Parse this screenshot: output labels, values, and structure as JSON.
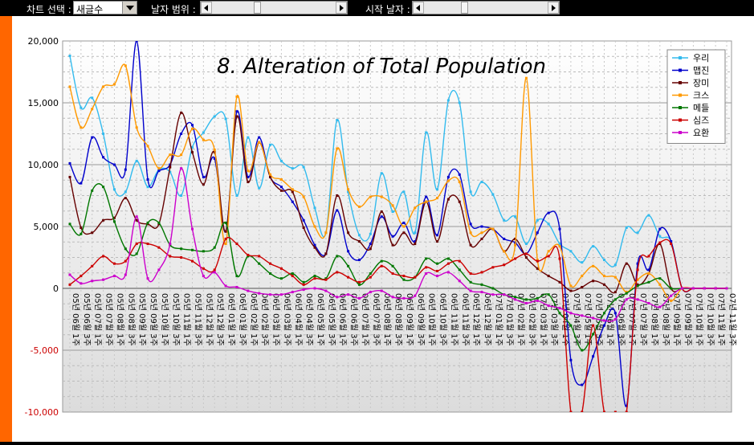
{
  "toolbar": {
    "chart_select_label": "차트 선택 :",
    "chart_select_value": "새글수",
    "date_range_label": "날자 범위 :",
    "start_date_label": "시작 날자 :"
  },
  "colors": {
    "accent_sidebar": "#ff6600",
    "plot_background": "#e6e6e6"
  },
  "chart_data": {
    "type": "line",
    "title": "8. Alteration of Total Population",
    "xlabel": "",
    "ylabel": "",
    "ylim": [
      -10000,
      20000
    ],
    "yticks": [
      -10000,
      -5000,
      0,
      5000,
      10000,
      15000,
      20000
    ],
    "ytick_labels": [
      "-10,000",
      "-5,000",
      "0",
      "5,000",
      "10,000",
      "15,000",
      "20,000"
    ],
    "grid": true,
    "legend_position": "top-right",
    "categories": [
      "05년 06월 1주",
      "05년 06월 3주",
      "05년 07월 1주",
      "05년 07월 3주",
      "05년 08월 1주",
      "05년 08월 3주",
      "05년 09월 1주",
      "05년 09월 3주",
      "05년 10월 1주",
      "05년 10월 3주",
      "05년 11월 1주",
      "05년 11월 3주",
      "05년 12월 1주",
      "05년 12월 3주",
      "06년 01월 1주",
      "06년 01월 3주",
      "06년 02월 1주",
      "06년 02월 3주",
      "06년 03월 1주",
      "06년 03월 3주",
      "06년 04월 1주",
      "06년 04월 3주",
      "06년 05월 1주",
      "06년 05월 3주",
      "06년 06월 1주",
      "06년 06월 3주",
      "06년 07월 1주",
      "06년 07월 3주",
      "06년 08월 1주",
      "06년 08월 3주",
      "06년 09월 1주",
      "06년 09월 3주",
      "06년 10월 1주",
      "06년 10월 3주",
      "06년 11월 1주",
      "06년 11월 3주",
      "06년 12월 1주",
      "06년 12월 3주",
      "07년 01월 1주",
      "07년 01월 3주",
      "07년 02월 1주",
      "07년 02월 3주",
      "07년 03월 1주",
      "07년 03월 3주",
      "07년 04월 1주",
      "07년 04월 3주",
      "07년 05월 1주",
      "07년 05월 3주",
      "07년 06월 1주",
      "07년 06월 3주",
      "07년 07월 1주",
      "07년 07월 3주",
      "07년 08월 1주",
      "07년 08월 3주",
      "07년 09월 1주",
      "07년 09월 3주",
      "07년 10월 1주",
      "07년 10월 3주",
      "07년 11월 1주",
      "07년 11월 3주"
    ],
    "series": [
      {
        "name": "우리",
        "color": "#33bbee",
        "values": [
          18800,
          14600,
          15400,
          12500,
          8000,
          7800,
          10300,
          8200,
          9600,
          9400,
          7500,
          11400,
          12600,
          13900,
          13700,
          7500,
          12200,
          8100,
          11600,
          10300,
          9700,
          9800,
          6500,
          4500,
          13600,
          7800,
          4300,
          4400,
          9300,
          6200,
          7800,
          4500,
          12600,
          8000,
          15200,
          15000,
          7800,
          8600,
          7600,
          5500,
          5800,
          3600,
          5500,
          5200,
          3600,
          3000,
          2100,
          3400,
          2300,
          1900,
          4900,
          4500,
          5900,
          4200,
          3800,
          0,
          0,
          0,
          0,
          0
        ]
      },
      {
        "name": "맵진",
        "color": "#0000cc",
        "values": [
          10100,
          8500,
          12200,
          10600,
          10000,
          9600,
          20000,
          8800,
          9500,
          10000,
          12500,
          13200,
          9000,
          10500,
          4600,
          14300,
          9000,
          12200,
          9000,
          8200,
          7000,
          5500,
          3500,
          2800,
          6300,
          3000,
          2300,
          3600,
          5800,
          4200,
          5300,
          3800,
          7400,
          4300,
          9000,
          9200,
          5200,
          5000,
          4800,
          4000,
          3700,
          2800,
          4500,
          6100,
          4800,
          -5800,
          -7800,
          -5500,
          -3000,
          -2000,
          -9500,
          2000,
          1500,
          4800,
          3800,
          0,
          0,
          0,
          0,
          0
        ]
      },
      {
        "name": "장미",
        "color": "#660000",
        "values": [
          9000,
          4900,
          4500,
          5500,
          5700,
          7300,
          5500,
          5200,
          5200,
          9800,
          14200,
          11000,
          8400,
          11000,
          4600,
          13900,
          8600,
          11800,
          9000,
          7900,
          7800,
          4900,
          3300,
          2800,
          7500,
          4500,
          3800,
          3200,
          6200,
          3500,
          4500,
          3600,
          7000,
          3800,
          7200,
          7000,
          3500,
          4000,
          4800,
          3000,
          4000,
          2500,
          1600,
          1000,
          500,
          -200,
          100,
          600,
          300,
          -300,
          2000,
          300,
          1200,
          3600,
          0,
          0,
          0,
          0,
          0,
          0
        ]
      },
      {
        "name": "크스",
        "color": "#ff9900",
        "values": [
          16300,
          13000,
          14500,
          16300,
          16500,
          18000,
          13000,
          11500,
          9700,
          10800,
          10800,
          12900,
          12000,
          11200,
          3600,
          15500,
          9500,
          11800,
          9200,
          8800,
          8000,
          7400,
          5000,
          4500,
          11300,
          8000,
          6600,
          7400,
          7400,
          6700,
          5000,
          6500,
          7000,
          7300,
          8700,
          8600,
          4500,
          4500,
          4800,
          3000,
          3500,
          17000,
          2300,
          3000,
          3400,
          200,
          1000,
          1800,
          1000,
          900,
          -300,
          700,
          1200,
          300,
          -1000,
          0,
          0,
          0,
          0,
          0
        ]
      },
      {
        "name": "메들",
        "color": "#007700",
        "values": [
          5200,
          4400,
          7900,
          8200,
          5400,
          3200,
          2800,
          5300,
          5300,
          3500,
          3200,
          3100,
          3000,
          3300,
          5300,
          1000,
          2600,
          2000,
          1200,
          800,
          1200,
          500,
          1000,
          800,
          2600,
          1800,
          300,
          1200,
          2200,
          1800,
          700,
          900,
          2400,
          2000,
          2400,
          1500,
          500,
          300,
          0,
          -500,
          -700,
          -900,
          -800,
          -500,
          -2000,
          -3000,
          -5000,
          -3700,
          -2000,
          -900,
          -400,
          200,
          500,
          800,
          0,
          0,
          0,
          0,
          0,
          0
        ]
      },
      {
        "name": "심즈",
        "color": "#cc0000",
        "values": [
          300,
          1000,
          1800,
          2600,
          2000,
          2200,
          3600,
          3600,
          3300,
          2600,
          2500,
          2200,
          1600,
          1500,
          4000,
          3600,
          2700,
          2600,
          2000,
          1600,
          1000,
          300,
          800,
          700,
          1300,
          900,
          500,
          900,
          1800,
          1200,
          1000,
          900,
          1700,
          1400,
          2000,
          2200,
          1200,
          1300,
          1700,
          1900,
          2400,
          2800,
          2200,
          2600,
          2400,
          -10000,
          -10000,
          -3000,
          -10000,
          -10000,
          -10000,
          1500,
          2600,
          3700,
          3600,
          0,
          0,
          0,
          0,
          0
        ]
      },
      {
        "name": "요환",
        "color": "#cc00cc",
        "values": [
          1100,
          400,
          600,
          700,
          1000,
          1100,
          5800,
          800,
          1500,
          3600,
          9700,
          4800,
          1000,
          1300,
          200,
          100,
          -200,
          -400,
          -500,
          -500,
          -300,
          -100,
          0,
          -200,
          -700,
          -500,
          -800,
          -300,
          -200,
          -700,
          -800,
          -600,
          1200,
          1000,
          1300,
          600,
          -200,
          -300,
          -500,
          -500,
          -900,
          -1200,
          -1000,
          -1400,
          -1600,
          -2000,
          -2200,
          -2400,
          -2600,
          -2500,
          -900,
          -900,
          -1200,
          -1500,
          -600,
          0,
          0,
          0,
          0,
          0
        ]
      }
    ]
  }
}
